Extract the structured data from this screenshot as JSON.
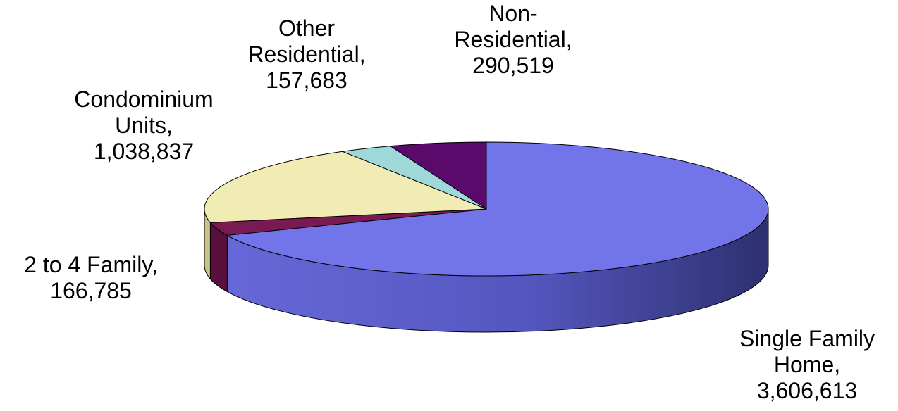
{
  "chart_data": {
    "type": "pie",
    "style": "3d-tilted",
    "title": "",
    "slices": [
      {
        "label": "Single Family Home",
        "value": 3606613,
        "value_text": "3,606,613",
        "color": "#7274e9",
        "side_color": "#3a3d8c",
        "label_lines": [
          "Single Family",
          "Home,",
          "3,606,613"
        ]
      },
      {
        "label": "2 to 4 Family",
        "value": 166785,
        "value_text": "166,785",
        "color": "#7a1a52",
        "side_color": "#5a0f3c",
        "label_lines": [
          "2 to 4 Family,",
          "166,785"
        ]
      },
      {
        "label": "Condominium Units",
        "value": 1038837,
        "value_text": "1,038,837",
        "color": "#f0ecb4",
        "side_color": "#c7c38a",
        "label_lines": [
          "Condominium",
          "Units,",
          "1,038,837"
        ]
      },
      {
        "label": "Other Residential",
        "value": 157683,
        "value_text": "157,683",
        "color": "#9ed8d8",
        "side_color": "#6fa6a6",
        "label_lines": [
          "Other",
          "Residential,",
          "157,683"
        ]
      },
      {
        "label": "Non-Residential",
        "value": 290519,
        "value_text": "290,519",
        "color": "#5a0a6a",
        "side_color": "#3c0548",
        "label_lines": [
          "Non-",
          "Residential,",
          "290,519"
        ]
      }
    ]
  }
}
